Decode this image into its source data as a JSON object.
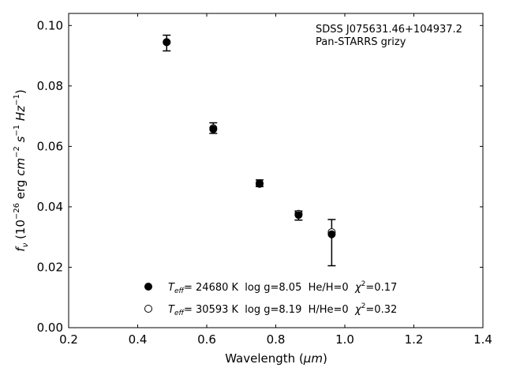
{
  "chart_data": {
    "type": "scatter",
    "annotation": {
      "line1": "SDSS J075631.46+104937.2",
      "line2": "Pan-STARRS grizy"
    },
    "xlabel": "Wavelength (",
    "xlabel_unit": "μm",
    "xlabel_close": ")",
    "ylabel": {
      "f": "f",
      "nu": "ν",
      "open": " (10",
      "exp1": "−26",
      "erg": " erg ",
      "cm": "cm",
      "exp2": "−2",
      "s": " s",
      "exp3": "−1",
      "hz": " Hz",
      "exp4": "−1",
      "close": ")"
    },
    "xlim": [
      0.2,
      1.4
    ],
    "ylim": [
      0.0,
      0.104
    ],
    "xticks": [
      0.2,
      0.4,
      0.6,
      0.8,
      1.0,
      1.2,
      1.4
    ],
    "xtick_labels": [
      "0.2",
      "0.4",
      "0.6",
      "0.8",
      "1.0",
      "1.2",
      "1.4"
    ],
    "yticks": [
      0.0,
      0.02,
      0.04,
      0.06,
      0.08,
      0.1
    ],
    "ytick_labels": [
      "0.00",
      "0.02",
      "0.04",
      "0.06",
      "0.08",
      "0.10"
    ],
    "observed": {
      "x": [
        0.484,
        0.619,
        0.753,
        0.866,
        0.962
      ],
      "y": [
        0.0943,
        0.0658,
        0.0477,
        0.0374,
        0.0316
      ],
      "yerr_low": [
        0.0027,
        0.0015,
        0.001,
        0.0018,
        0.0111
      ],
      "yerr_high": [
        0.0025,
        0.002,
        0.0012,
        0.0012,
        0.0042
      ]
    },
    "series": [
      {
        "marker": "filled",
        "color": "#000000",
        "x": [
          0.484,
          0.619,
          0.753,
          0.866,
          0.962
        ],
        "y": [
          0.0945,
          0.0657,
          0.0476,
          0.0373,
          0.0309
        ]
      },
      {
        "marker": "open",
        "color": "#000000",
        "x": [
          0.484,
          0.619,
          0.753,
          0.866,
          0.962
        ],
        "y": [
          0.0945,
          0.066,
          0.0478,
          0.0377,
          0.0316
        ]
      }
    ],
    "legend": {
      "placement": "lower-center",
      "entries": [
        {
          "marker": "filled",
          "teff_symbol": "T",
          "teff_sub": "eff",
          "teff_value": "= 24680 K  log g=8.05  He/H=0  ",
          "chi_symbol": "χ",
          "chi_sup": "2",
          "chi_value": "=0.17"
        },
        {
          "marker": "open",
          "teff_symbol": "T",
          "teff_sub": "eff",
          "teff_value": "= 30593 K  log g=8.19  H/He=0  ",
          "chi_symbol": "χ",
          "chi_sup": "2",
          "chi_value": "=0.32"
        }
      ]
    },
    "grid": false
  }
}
